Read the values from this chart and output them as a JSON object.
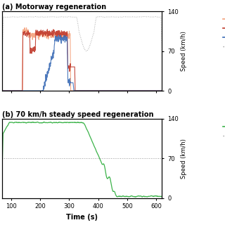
{
  "title_a": "(a) Motorway regeneration",
  "title_b": "(b) 70 km/h steady speed regeneration",
  "xlabel": "Time (s)",
  "ylabel_right": "Speed (km/h)",
  "xlim": [
    70,
    620
  ],
  "xticks": [
    100,
    200,
    300,
    400,
    500,
    600
  ],
  "ylim_right": [
    0,
    140
  ],
  "yticks_right": [
    0,
    70,
    140
  ],
  "speed_dotted_color": "#999999",
  "line_D1_color": "#f4a07a",
  "line_D2_color": "#c0392b",
  "line_D3_color": "#3a6bb5",
  "line_green_color": "#3cb34a",
  "background_color": "#ffffff"
}
